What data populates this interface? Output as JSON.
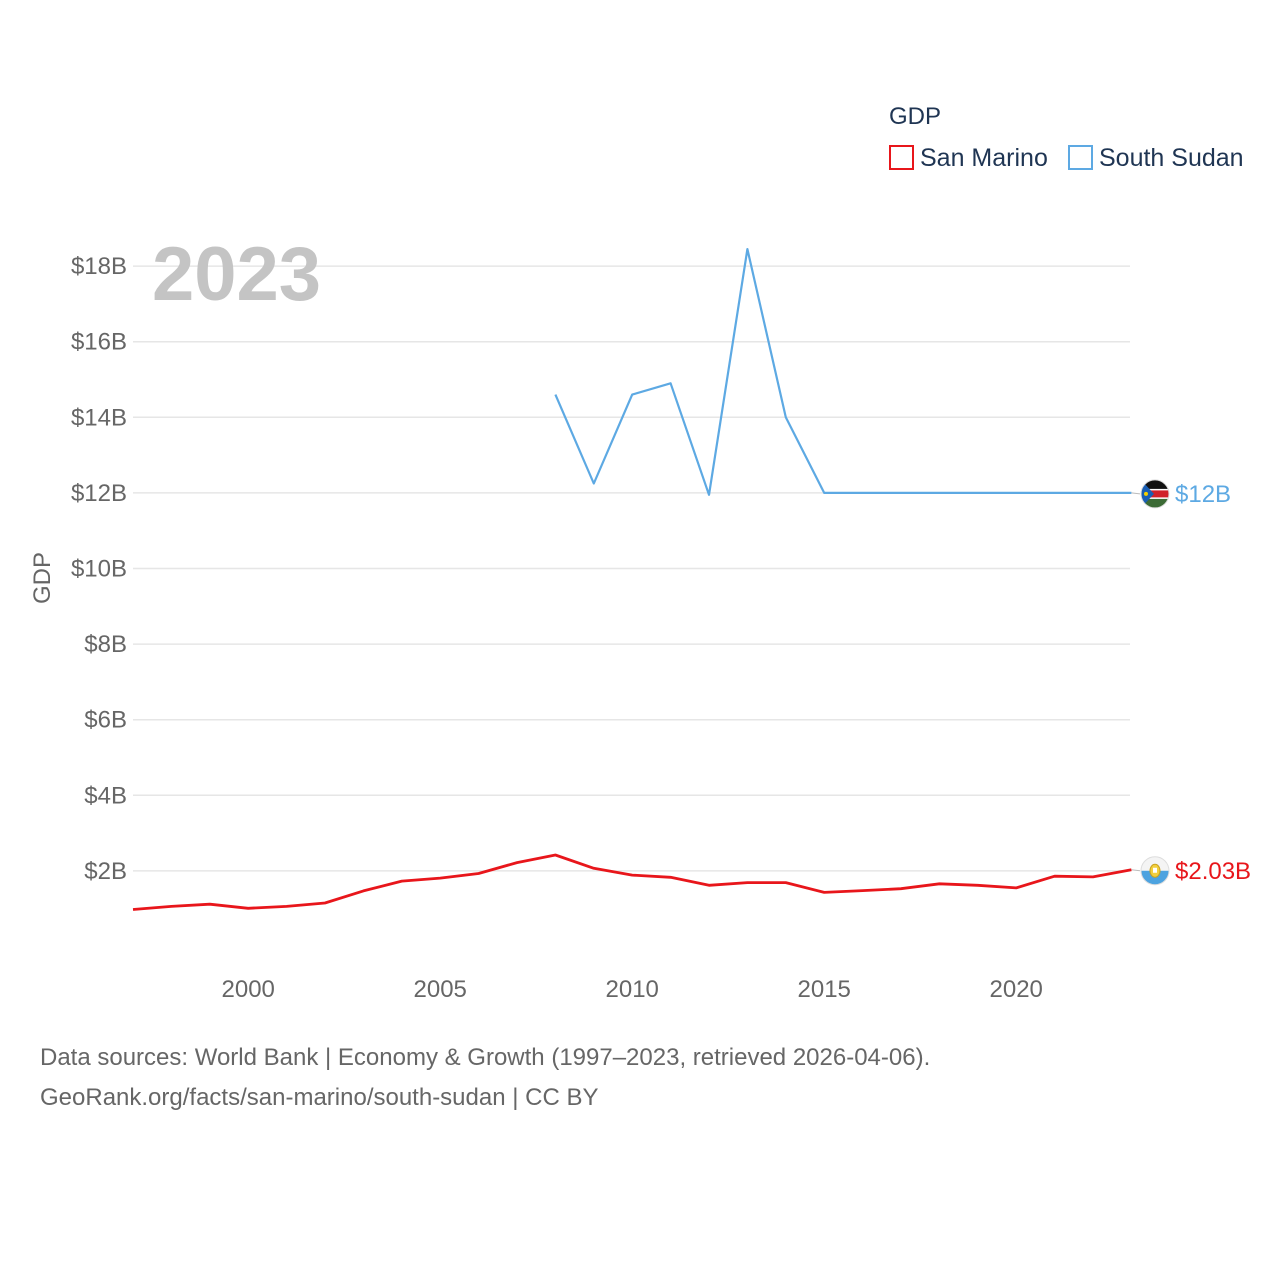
{
  "chart_data": {
    "type": "line",
    "title": "",
    "year_label": "2023",
    "ylabel": "GDP",
    "xlabel": "",
    "xlim": [
      1997,
      2023.6
    ],
    "ylim": [
      0,
      19.2
    ],
    "x_ticks": [
      2000,
      2005,
      2010,
      2015,
      2020
    ],
    "x_tick_labels": [
      "2000",
      "2005",
      "2010",
      "2015",
      "2020"
    ],
    "y_ticks": [
      2,
      4,
      6,
      8,
      10,
      12,
      14,
      16,
      18
    ],
    "y_tick_labels": [
      "$2B",
      "$4B",
      "$6B",
      "$8B",
      "$10B",
      "$12B",
      "$14B",
      "$16B",
      "$18B"
    ],
    "grid": true,
    "legend": {
      "title": "GDP",
      "position": "top-right",
      "items": [
        "San Marino",
        "South Sudan"
      ]
    },
    "series": [
      {
        "name": "San Marino",
        "color": "#e8161b",
        "end_label": "$2.03B",
        "x": [
          1997,
          1998,
          1999,
          2000,
          2001,
          2002,
          2003,
          2004,
          2005,
          2006,
          2007,
          2008,
          2009,
          2010,
          2011,
          2012,
          2013,
          2014,
          2015,
          2016,
          2017,
          2018,
          2019,
          2020,
          2021,
          2022,
          2023
        ],
        "values": [
          0.98,
          1.06,
          1.12,
          1.01,
          1.06,
          1.15,
          1.47,
          1.73,
          1.81,
          1.93,
          2.22,
          2.42,
          2.07,
          1.89,
          1.83,
          1.62,
          1.69,
          1.69,
          1.43,
          1.48,
          1.53,
          1.66,
          1.62,
          1.55,
          1.86,
          1.84,
          2.03
        ]
      },
      {
        "name": "South Sudan",
        "color": "#5da9e3",
        "end_label": "$12B",
        "x": [
          2008,
          2009,
          2010,
          2011,
          2012,
          2013,
          2014,
          2015,
          2016,
          2017,
          2018,
          2019,
          2020,
          2021,
          2022,
          2023
        ],
        "values": [
          14.6,
          12.25,
          14.6,
          14.9,
          11.95,
          18.45,
          14.0,
          12.0,
          12.0,
          12.0,
          12.0,
          12.0,
          12.0,
          12.0,
          12.0,
          12.0
        ]
      }
    ]
  },
  "footer": {
    "line1": "Data sources: World Bank | Economy & Growth (1997–2023, retrieved 2026-04-06).",
    "line2": "GeoRank.org/facts/san-marino/south-sudan | CC BY"
  }
}
